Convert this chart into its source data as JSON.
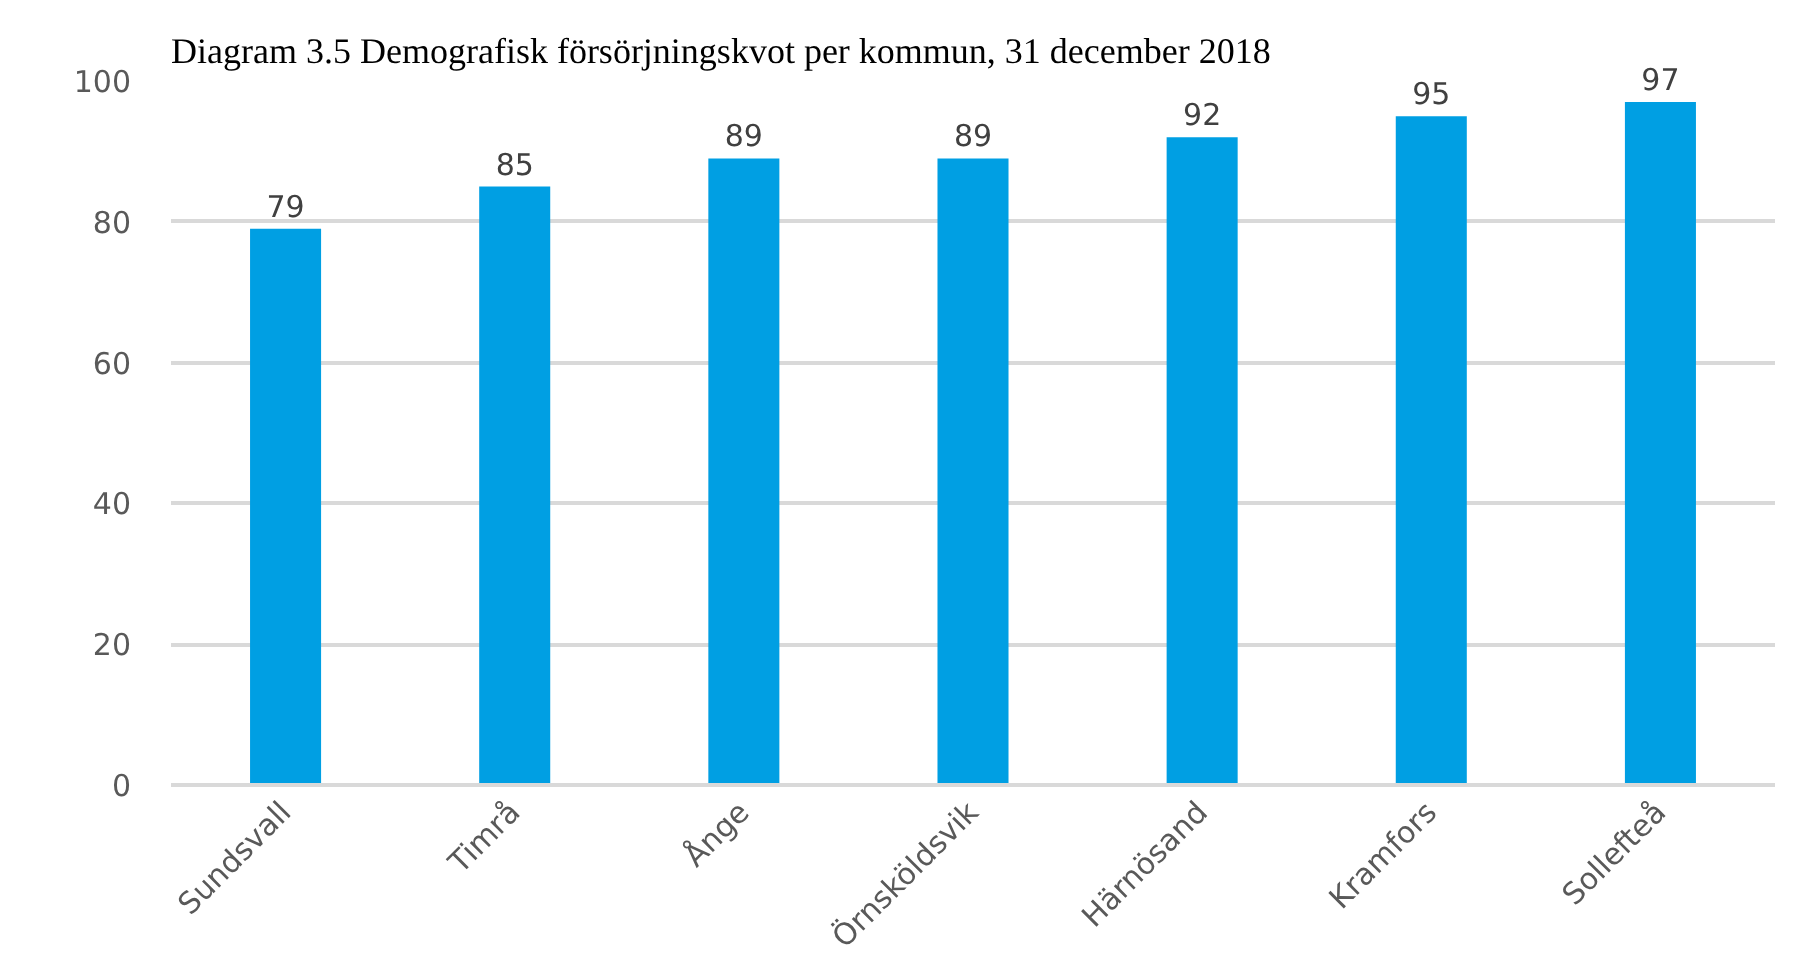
{
  "chart_data": {
    "type": "bar",
    "title": "Diagram 3.5 Demografisk försörjningskvot per kommun, 31 december 2018",
    "categories": [
      "Sundsvall",
      "Timrå",
      "Ånge",
      "Örnsköldsvik",
      "Härnösand",
      "Kramfors",
      "Sollefteå"
    ],
    "values": [
      79,
      85,
      89,
      89,
      92,
      95,
      97
    ],
    "color": "#009fe3",
    "ylim": [
      0,
      100
    ],
    "yticks": [
      0,
      20,
      40,
      60,
      80,
      100
    ],
    "grid": "y",
    "data_labels": true
  }
}
